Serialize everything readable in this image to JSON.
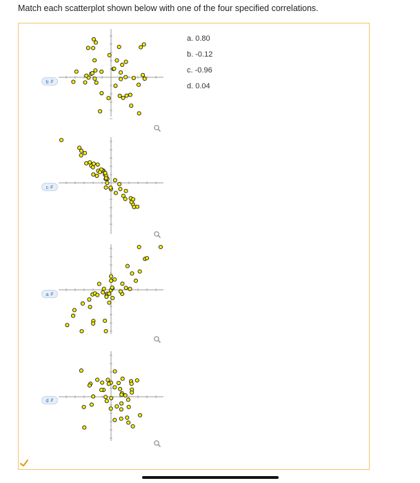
{
  "instructions": "Match each scatterplot shown below with one of the four specified correlations.",
  "options": [
    {
      "letter": "a.",
      "value": "0.80"
    },
    {
      "letter": "b.",
      "value": "-0.12"
    },
    {
      "letter": "c.",
      "value": "-0.96"
    },
    {
      "letter": "d.",
      "value": "0.04"
    }
  ],
  "plots": [
    {
      "selected": "b"
    },
    {
      "selected": "c"
    },
    {
      "selected": "a"
    },
    {
      "selected": "d"
    }
  ],
  "colors": {
    "marker_fill": "#f5ec00",
    "marker_stroke": "#222222",
    "axis": "#9a9a9a",
    "panel_border": "#f3c46a",
    "pill_text": "#3a6fb0",
    "check": "#e2a21a"
  },
  "icons": {
    "zoom": "magnifier-icon",
    "chevron": "chevron-updown-icon",
    "check": "checkmark-icon"
  }
}
